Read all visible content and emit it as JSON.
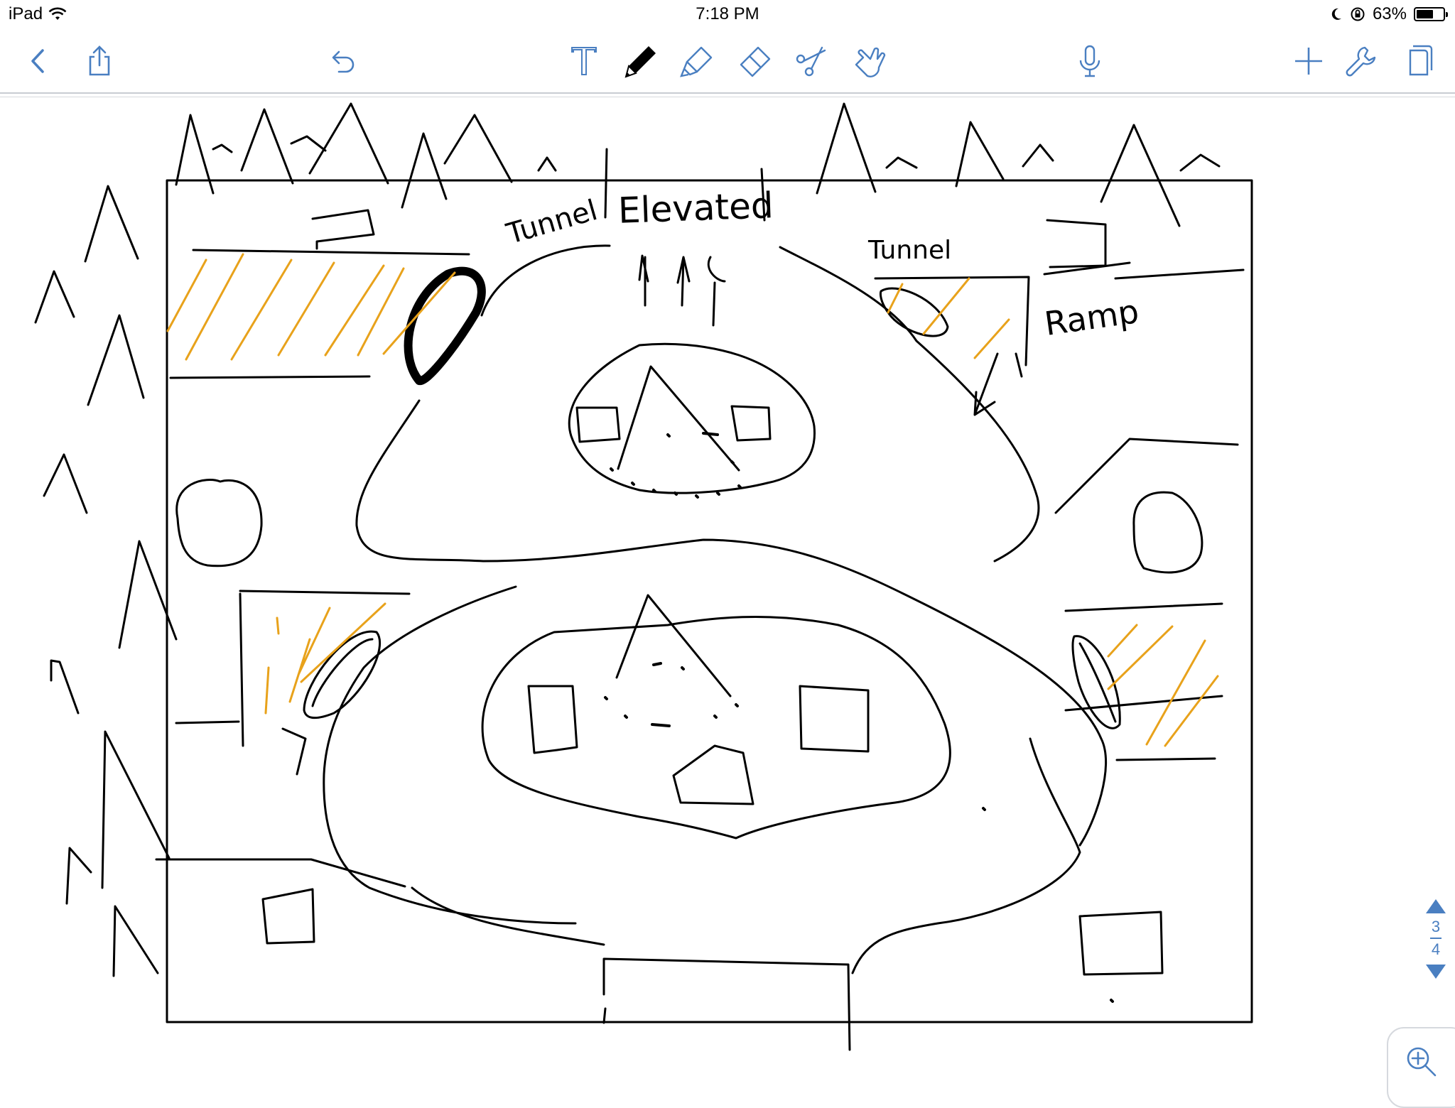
{
  "status": {
    "device": "iPad",
    "time": "7:18 PM",
    "battery": "63%",
    "battery_level": 0.63
  },
  "toolbar": {
    "left": [
      "back-icon",
      "share-icon",
      "undo-icon"
    ],
    "tools": [
      "text-tool-icon",
      "pencil-icon",
      "highlighter-icon",
      "eraser-icon",
      "scissors-icon",
      "hand-pointer-icon"
    ],
    "right": [
      "microphone-icon",
      "add-icon",
      "wrench-icon",
      "pages-icon"
    ],
    "accent": "#4a7fc1"
  },
  "sketch": {
    "labels": {
      "tunnel_1": "Tunnel",
      "elevated": "Elevated",
      "tunnel_2": "Tunnel",
      "ramp": "Ramp"
    },
    "stroke_color": "#000000",
    "hatch_color": "#e8a21b"
  },
  "pager": {
    "current": "3",
    "total": "4"
  }
}
